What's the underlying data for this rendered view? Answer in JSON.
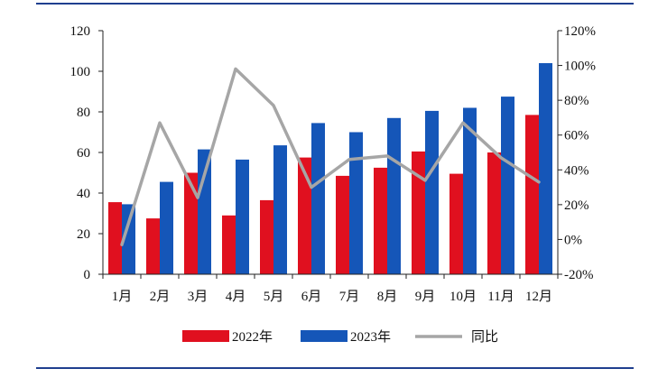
{
  "colors": {
    "frame": "#1f3f8f",
    "series_2022": "#e0101f",
    "series_2023": "#1556b8",
    "yoy_line": "#a6a6a6",
    "axis": "#222222"
  },
  "chart_data": {
    "type": "bar",
    "categories": [
      "1月",
      "2月",
      "3月",
      "4月",
      "5月",
      "6月",
      "7月",
      "8月",
      "9月",
      "10月",
      "11月",
      "12月"
    ],
    "series": [
      {
        "name": "2022年",
        "type": "bar",
        "axis": "left",
        "color": "#e0101f",
        "values": [
          35.5,
          27.5,
          50,
          29,
          36.5,
          57.5,
          48.5,
          52.5,
          60.5,
          49.5,
          60,
          78.5
        ]
      },
      {
        "name": "2023年",
        "type": "bar",
        "axis": "left",
        "color": "#1556b8",
        "values": [
          34.5,
          45.5,
          61.5,
          56.5,
          63.5,
          74.5,
          70,
          77,
          80.5,
          82,
          87.5,
          104
        ]
      },
      {
        "name": "同比",
        "type": "line",
        "axis": "right",
        "color": "#a6a6a6",
        "values": [
          -3,
          67,
          24,
          98,
          77,
          30,
          46,
          48,
          34,
          67,
          47,
          33
        ]
      }
    ],
    "ylim": [
      0,
      120
    ],
    "yticks": [
      0,
      20,
      40,
      60,
      80,
      100,
      120
    ],
    "y2lim": [
      -20,
      120
    ],
    "y2ticks": [
      "-20%",
      "0%",
      "20%",
      "40%",
      "60%",
      "80%",
      "100%",
      "120%"
    ],
    "y2tick_values": [
      -20,
      0,
      20,
      40,
      60,
      80,
      100,
      120
    ],
    "grid": false,
    "legend": "bottom"
  }
}
